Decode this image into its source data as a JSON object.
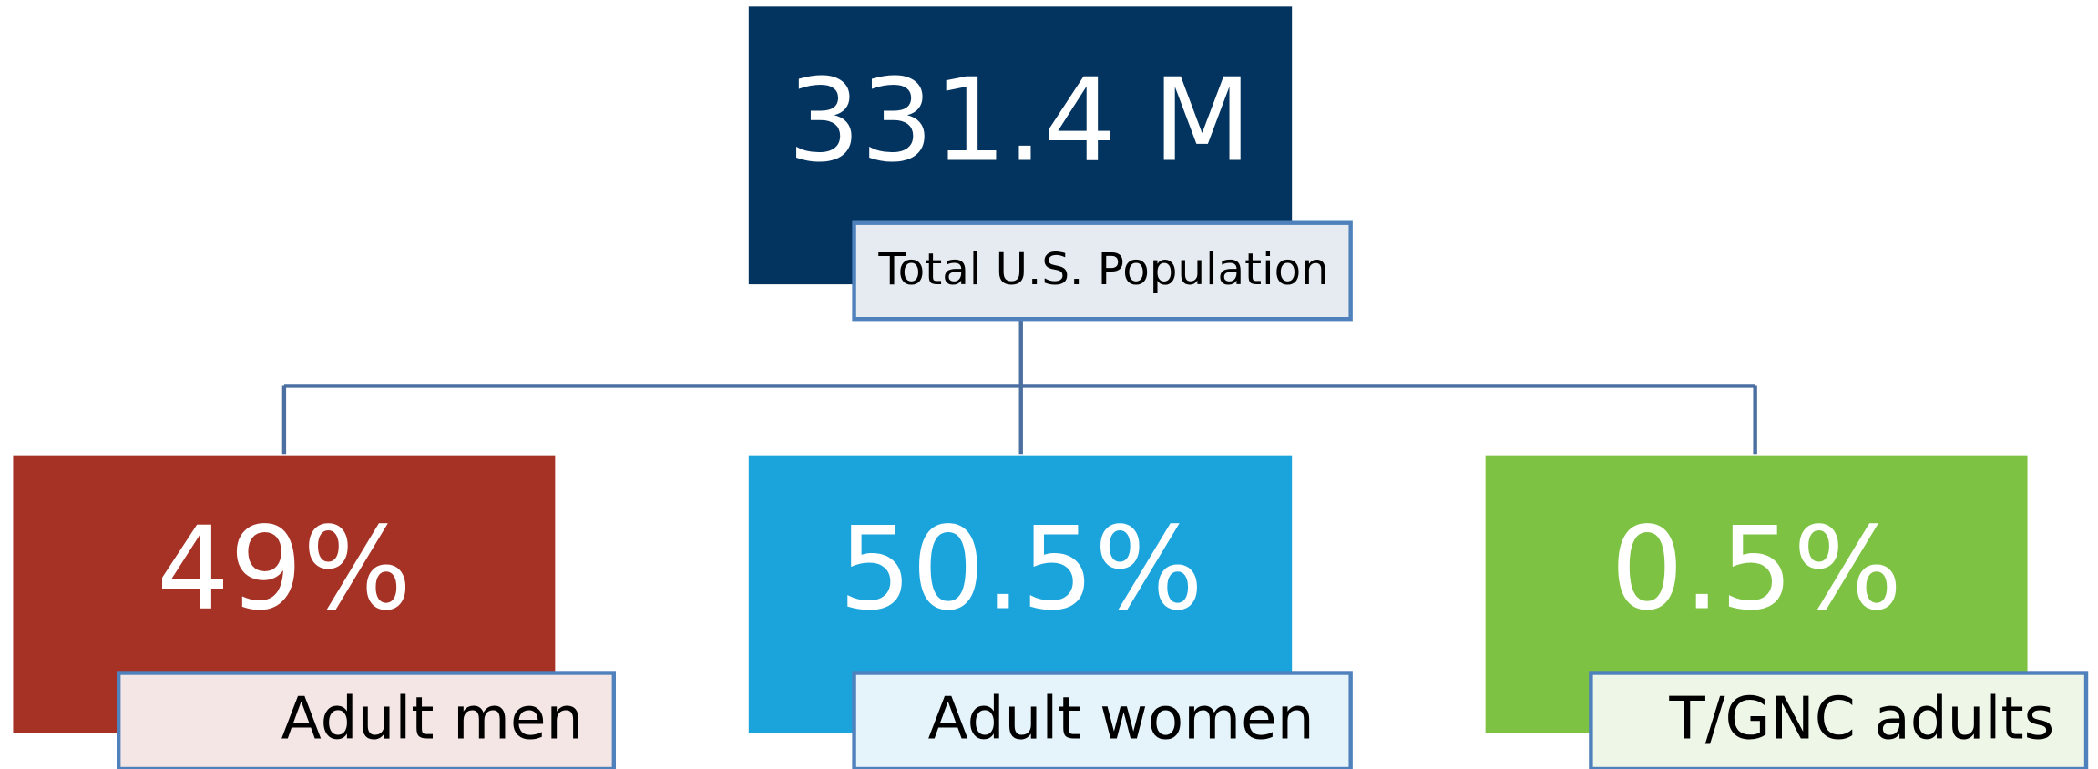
{
  "root": {
    "value": "331.4 M",
    "label": "Total U.S. Population"
  },
  "children": [
    {
      "value": "49%",
      "label": "Adult men"
    },
    {
      "value": "50.5%",
      "label": "Adult women"
    },
    {
      "value": "0.5%",
      "label": "T/GNC adults"
    }
  ]
}
